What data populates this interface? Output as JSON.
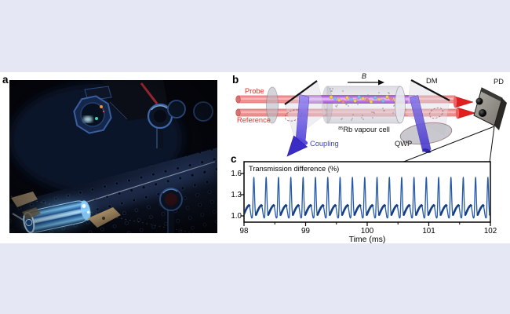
{
  "figure": {
    "panels": {
      "a": "a",
      "b": "b",
      "c": "c"
    },
    "panel_b": {
      "labels": {
        "probe": "Probe",
        "reference": "Reference",
        "coupling": "Coupling",
        "b_field": "B",
        "cell_sup": "85",
        "cell_main": "Rb vapour cell",
        "dm": "DM",
        "qwp": "QWP",
        "pd": "PD"
      },
      "colors": {
        "probe_label": "#e8312b",
        "coupling_label": "#3f3fd0",
        "probe_beam": "#ef8d8d",
        "overlap_beam": "#b565e0",
        "coupling_beam": "#4838d8"
      }
    }
  },
  "chart_data": {
    "type": "line",
    "title": "Transmission difference (%)",
    "xlabel": "Time (ms)",
    "x_range": [
      98,
      102
    ],
    "x_ticks": [
      "98",
      "99",
      "100",
      "101",
      "102"
    ],
    "x_tick_values": [
      98,
      99,
      100,
      101,
      102
    ],
    "x_minor_tick_values": [
      98.5,
      99.5,
      100.5,
      101.5
    ],
    "y_ticks": [
      "1.0",
      "1.3",
      "1.6"
    ],
    "y_tick_values": [
      1.0,
      1.3,
      1.6
    ],
    "y_view_range": [
      0.912,
      1.768
    ],
    "grid": false,
    "legend": "none",
    "line_color": "#2458a8",
    "emphasis_color": "#143f85",
    "period_ms": 0.2,
    "phase_ms": 0.136,
    "peak_value": 1.545,
    "base_value": 0.985,
    "num_periods_visible": 20,
    "emphasis_t_range": [
      0.29,
      0.79
    ],
    "waveform_period_shape": [
      [
        0.0,
        0.985
      ],
      [
        0.025,
        1.09
      ],
      [
        0.055,
        1.28
      ],
      [
        0.085,
        1.45
      ],
      [
        0.105,
        1.53
      ],
      [
        0.12,
        1.545
      ],
      [
        0.135,
        1.52
      ],
      [
        0.16,
        1.4
      ],
      [
        0.19,
        1.22
      ],
      [
        0.22,
        1.09
      ],
      [
        0.25,
        1.03
      ],
      [
        0.29,
        1.015
      ],
      [
        0.35,
        1.04
      ],
      [
        0.45,
        1.08
      ],
      [
        0.55,
        1.115
      ],
      [
        0.65,
        1.14
      ],
      [
        0.72,
        1.15
      ],
      [
        0.76,
        1.145
      ],
      [
        0.81,
        1.1
      ],
      [
        0.86,
        1.04
      ],
      [
        0.91,
        0.985
      ],
      [
        0.95,
        0.97
      ],
      [
        0.975,
        0.972
      ],
      [
        1.0,
        0.985
      ]
    ]
  }
}
